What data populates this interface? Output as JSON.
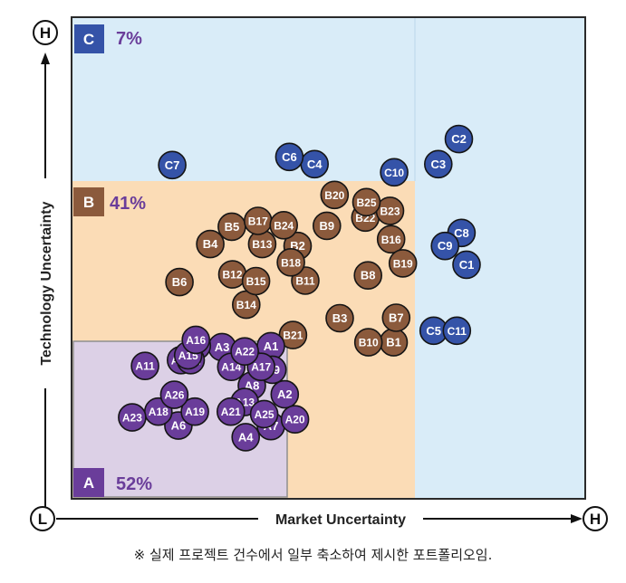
{
  "chart_data": {
    "type": "scatter",
    "xlabel": "Market Uncertainty",
    "ylabel": "Technology Uncertainty",
    "axis_low_label": "L",
    "axis_high_label": "H",
    "xlim": [
      0,
      100
    ],
    "ylim": [
      0,
      100
    ],
    "zones": [
      {
        "letter": "C",
        "percent": "7%",
        "color": "#d9ecf8",
        "badge_color": "#3553a8"
      },
      {
        "letter": "B",
        "percent": "41%",
        "color": "#fbdcb6",
        "badge_color": "#8b5a3c"
      },
      {
        "letter": "A",
        "percent": "52%",
        "color": "#dcd0e6",
        "badge_color": "#6a3d9a"
      }
    ],
    "series": [
      {
        "name": "C",
        "color": "#3553a8",
        "points": [
          {
            "label": "C1",
            "x": 76.9,
            "y": 48.6
          },
          {
            "label": "C2",
            "x": 75.4,
            "y": 74.7
          },
          {
            "label": "C3",
            "x": 71.4,
            "y": 69.5
          },
          {
            "label": "C4",
            "x": 47.3,
            "y": 69.5
          },
          {
            "label": "C5",
            "x": 70.5,
            "y": 34.9
          },
          {
            "label": "C6",
            "x": 42.4,
            "y": 71.0
          },
          {
            "label": "C7",
            "x": 19.6,
            "y": 69.3
          },
          {
            "label": "C8",
            "x": 75.9,
            "y": 55.2
          },
          {
            "label": "C9",
            "x": 72.7,
            "y": 52.5
          },
          {
            "label": "C10",
            "x": 62.8,
            "y": 67.8
          },
          {
            "label": "C11",
            "x": 75.0,
            "y": 34.9
          }
        ]
      },
      {
        "name": "B",
        "color": "#8b5a3c",
        "points": [
          {
            "label": "B1",
            "x": 62.7,
            "y": 32.5
          },
          {
            "label": "B2",
            "x": 44.0,
            "y": 52.5
          },
          {
            "label": "B3",
            "x": 52.2,
            "y": 37.5
          },
          {
            "label": "B4",
            "x": 27.0,
            "y": 52.9
          },
          {
            "label": "B5",
            "x": 31.2,
            "y": 56.5
          },
          {
            "label": "B6",
            "x": 21.0,
            "y": 45.0
          },
          {
            "label": "B7",
            "x": 63.2,
            "y": 37.6
          },
          {
            "label": "B8",
            "x": 57.7,
            "y": 46.4
          },
          {
            "label": "B9",
            "x": 49.7,
            "y": 56.7
          },
          {
            "label": "B10",
            "x": 57.8,
            "y": 32.5
          },
          {
            "label": "B11",
            "x": 45.5,
            "y": 45.3
          },
          {
            "label": "B12",
            "x": 31.3,
            "y": 46.6
          },
          {
            "label": "B13",
            "x": 37.1,
            "y": 52.9
          },
          {
            "label": "B14",
            "x": 34.0,
            "y": 40.3
          },
          {
            "label": "B15",
            "x": 35.9,
            "y": 45.2
          },
          {
            "label": "B16",
            "x": 62.2,
            "y": 53.9
          },
          {
            "label": "B17",
            "x": 36.3,
            "y": 57.7
          },
          {
            "label": "B18",
            "x": 42.7,
            "y": 49.1
          },
          {
            "label": "B19",
            "x": 64.5,
            "y": 48.9
          },
          {
            "label": "B20",
            "x": 51.2,
            "y": 63.1
          },
          {
            "label": "B21",
            "x": 43.1,
            "y": 34.0
          },
          {
            "label": "B22",
            "x": 57.2,
            "y": 58.4
          },
          {
            "label": "B23",
            "x": 62.0,
            "y": 59.8
          },
          {
            "label": "B24",
            "x": 41.3,
            "y": 56.8
          },
          {
            "label": "B25",
            "x": 57.4,
            "y": 61.6
          }
        ]
      },
      {
        "name": "A",
        "color": "#6a3d9a",
        "points": [
          {
            "label": "A1",
            "x": 38.8,
            "y": 31.7
          },
          {
            "label": "A2",
            "x": 41.5,
            "y": 21.7
          },
          {
            "label": "A3",
            "x": 29.3,
            "y": 31.5
          },
          {
            "label": "A4",
            "x": 33.9,
            "y": 12.8
          },
          {
            "label": "A5",
            "x": 24.4,
            "y": 31.8
          },
          {
            "label": "A6",
            "x": 20.8,
            "y": 15.2
          },
          {
            "label": "A7",
            "x": 38.8,
            "y": 15.1
          },
          {
            "label": "A8",
            "x": 35.1,
            "y": 23.5
          },
          {
            "label": "A9",
            "x": 39.1,
            "y": 26.8
          },
          {
            "label": "A10",
            "x": 21.3,
            "y": 28.8
          },
          {
            "label": "A11",
            "x": 14.3,
            "y": 27.6
          },
          {
            "label": "A12",
            "x": 23.2,
            "y": 28.8
          },
          {
            "label": "A13",
            "x": 33.7,
            "y": 20.1
          },
          {
            "label": "A14",
            "x": 31.1,
            "y": 27.4
          },
          {
            "label": "A15",
            "x": 22.7,
            "y": 29.8
          },
          {
            "label": "A16",
            "x": 24.2,
            "y": 33.0
          },
          {
            "label": "A17",
            "x": 36.9,
            "y": 27.4
          },
          {
            "label": "A18",
            "x": 16.9,
            "y": 18.1
          },
          {
            "label": "A19",
            "x": 24.0,
            "y": 18.1
          },
          {
            "label": "A20",
            "x": 43.5,
            "y": 16.5
          },
          {
            "label": "A21",
            "x": 31.0,
            "y": 18.1
          },
          {
            "label": "A22",
            "x": 33.7,
            "y": 30.6
          },
          {
            "label": "A23",
            "x": 11.8,
            "y": 16.9
          },
          {
            "label": "A25",
            "x": 37.5,
            "y": 17.6
          },
          {
            "label": "A26",
            "x": 20.0,
            "y": 21.6
          }
        ]
      }
    ]
  },
  "footnote": "※ 실제 프로젝트 건수에서 일부 축소하여 제시한 포트폴리오임."
}
